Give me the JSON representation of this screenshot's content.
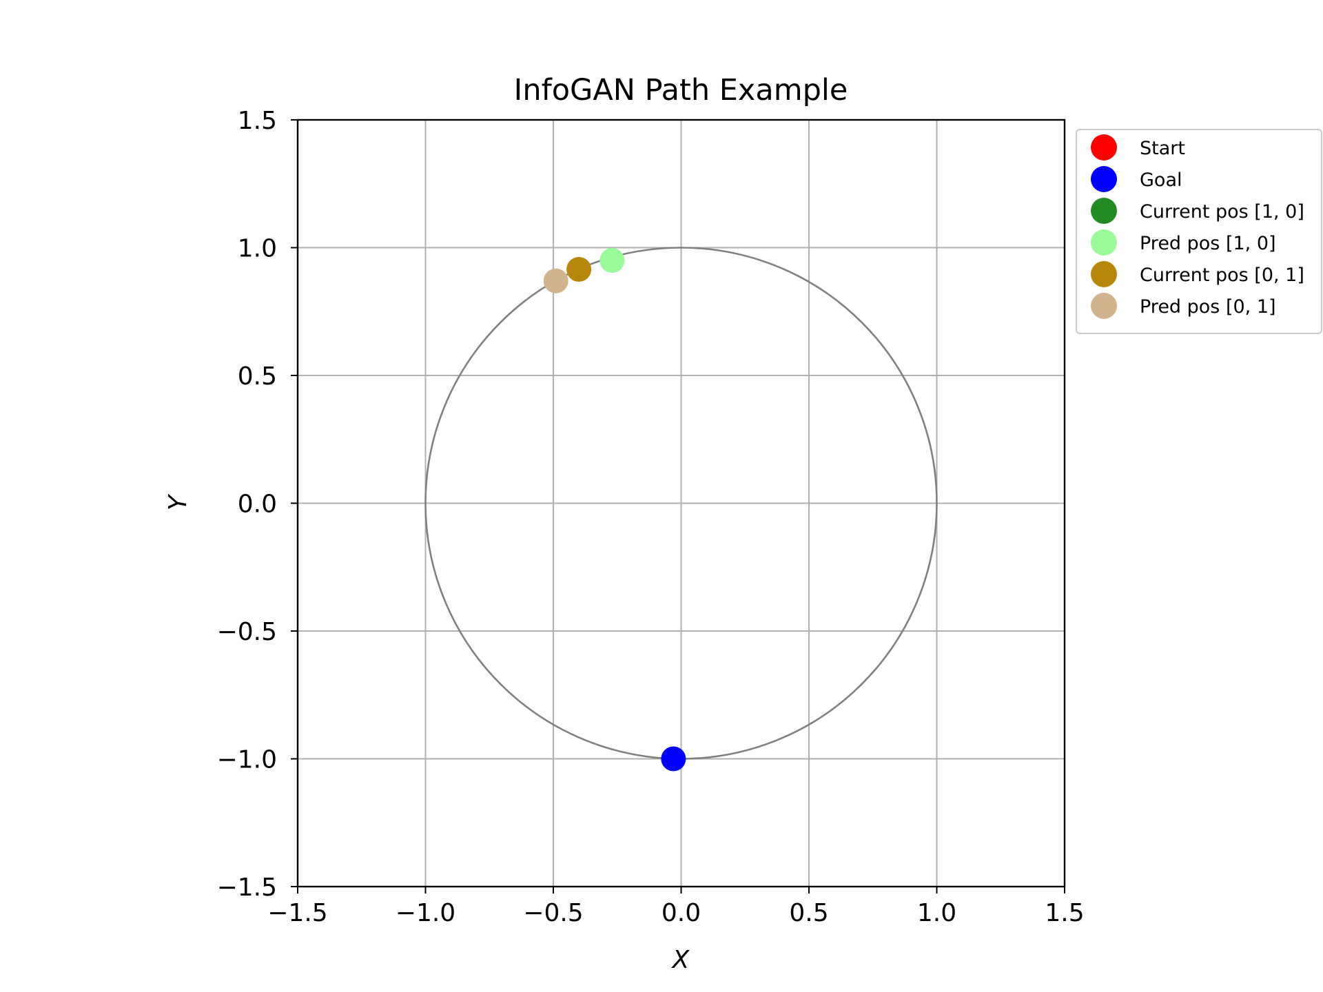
{
  "chart_data": {
    "type": "scatter",
    "title": "InfoGAN Path Example",
    "xlabel": "X",
    "ylabel": "Y",
    "xlim": [
      -1.5,
      1.5
    ],
    "ylim": [
      -1.5,
      1.5
    ],
    "x_ticks": [
      -1.5,
      -1.0,
      -0.5,
      0.0,
      0.5,
      1.0,
      1.5
    ],
    "y_ticks": [
      -1.5,
      -1.0,
      -0.5,
      0.0,
      0.5,
      1.0,
      1.5
    ],
    "x_tick_labels": [
      "−1.5",
      "−1.0",
      "−0.5",
      "0.0",
      "0.5",
      "1.0",
      "1.5"
    ],
    "y_tick_labels": [
      "−1.5",
      "−1.0",
      "−0.5",
      "0.0",
      "0.5",
      "1.0",
      "1.5"
    ],
    "grid": true,
    "legend_position": "outside-right-top",
    "circle": {
      "center": [
        0,
        0
      ],
      "radius": 1.0,
      "color": "#808080"
    },
    "series": [
      {
        "name": "Start",
        "color": "#ff0000",
        "points": []
      },
      {
        "name": "Goal",
        "color": "#0000ff",
        "points": [
          [
            -0.03,
            -1.0
          ]
        ]
      },
      {
        "name": "Current pos [1, 0]",
        "color": "#228b22",
        "points": []
      },
      {
        "name": "Pred pos [1, 0]",
        "color": "#98fb98",
        "points": [
          [
            -0.27,
            0.95
          ]
        ]
      },
      {
        "name": "Current pos [0, 1]",
        "color": "#b8860b",
        "points": [
          [
            -0.4,
            0.915
          ]
        ]
      },
      {
        "name": "Pred pos [0, 1]",
        "color": "#d2b48c",
        "points": [
          [
            -0.49,
            0.87
          ]
        ]
      }
    ]
  }
}
